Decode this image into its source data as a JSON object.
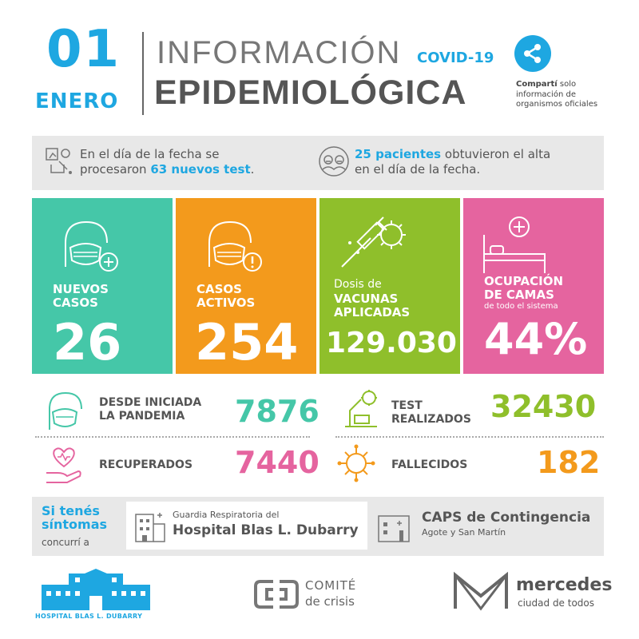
{
  "header": {
    "day": "01",
    "month": "ENERO",
    "title_line1": "INFORMACIÓN",
    "covid_tag": "COVID-19",
    "title_line2": "EPIDEMIOLÓGICA",
    "share_icon": "share-icon",
    "share_note_bold": "Compartí",
    "share_note_rest1": " solo",
    "share_note_line2": "información de",
    "share_note_line3": "organismos oficiales"
  },
  "info_bar": {
    "left": {
      "pre": "En el día de la fecha se",
      "pre2": "procesaron ",
      "highlight": "63 nuevos test",
      "post": "."
    },
    "right": {
      "highlight": "25 pacientes",
      "post": " obtuvieron el alta",
      "line2": "en el día de la fecha."
    }
  },
  "cards": [
    {
      "label1": "NUEVOS",
      "label2": "CASOS",
      "value": "26",
      "color": "#45c7a8",
      "icon": "masked-person-plus-icon"
    },
    {
      "label1": "CASOS",
      "label2": "ACTIVOS",
      "value": "254",
      "color": "#f39a1c",
      "icon": "masked-person-alert-icon"
    },
    {
      "small": "Dosis de",
      "label1": "VACUNAS",
      "label2": "APLICADAS",
      "value": "129.030",
      "color": "#8fbf2b",
      "icon": "syringe-virus-icon"
    },
    {
      "label1": "OCUPACIÓN",
      "label2": "DE CAMAS",
      "small": "de todo el sistema",
      "value": "44%",
      "color": "#e5649f",
      "icon": "hospital-bed-icon"
    }
  ],
  "stats": {
    "pandemia": {
      "label1": "DESDE INICIADA",
      "label2": "LA PANDEMIA",
      "value": "7876",
      "color": "#45c7a8"
    },
    "tests": {
      "label1": "TEST",
      "label2": "REALIZADOS",
      "value": "32430",
      "color": "#8fbf2b"
    },
    "recuperados": {
      "label": "RECUPERADOS",
      "value": "7440",
      "color": "#e5649f"
    },
    "fallecidos": {
      "label": "FALLECIDOS",
      "value": "182",
      "color": "#f39a1c"
    }
  },
  "symptoms": {
    "title1": "Si tenés",
    "title2": "síntomas",
    "sub": "concurrí a",
    "hospital_small": "Guardia Respiratoria del",
    "hospital_big": "Hospital Blas L. Dubarry",
    "caps_big": "CAPS de Contingencia",
    "caps_small": "Agote y San Martín"
  },
  "footer": {
    "hospital_label": "HOSPITAL BLAS L. DUBARRY",
    "comite_line1": "COMITÉ",
    "comite_line2": "de crisis",
    "mercedes_line1": "mercedes",
    "mercedes_line2": "ciudad de todos"
  }
}
